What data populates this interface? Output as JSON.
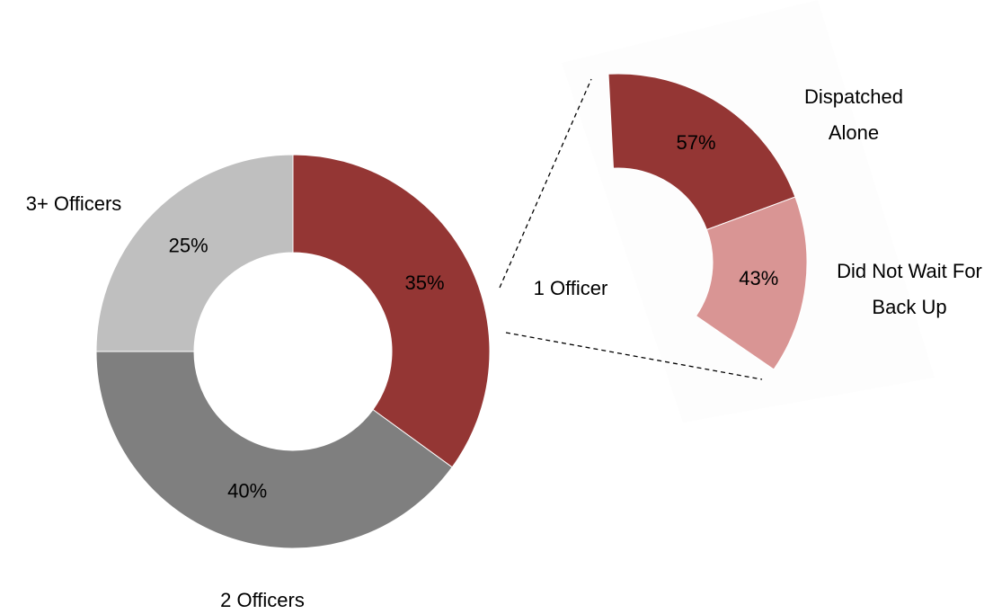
{
  "chart_data": [
    {
      "type": "donut",
      "categories": [
        "1 Officer",
        "2 Officers",
        "3+ Officers"
      ],
      "values": [
        35,
        40,
        25
      ],
      "value_labels": [
        "35%",
        "40%",
        "25%"
      ],
      "colors": [
        "#943634",
        "#7f7f7f",
        "#bfbfbf"
      ]
    },
    {
      "type": "donut",
      "categories": [
        "Dispatched Alone",
        "Did Not Wait For Back Up"
      ],
      "values": [
        57,
        43
      ],
      "value_labels": [
        "57%",
        "43%"
      ],
      "colors": [
        "#943634",
        "#d99594"
      ]
    }
  ]
}
